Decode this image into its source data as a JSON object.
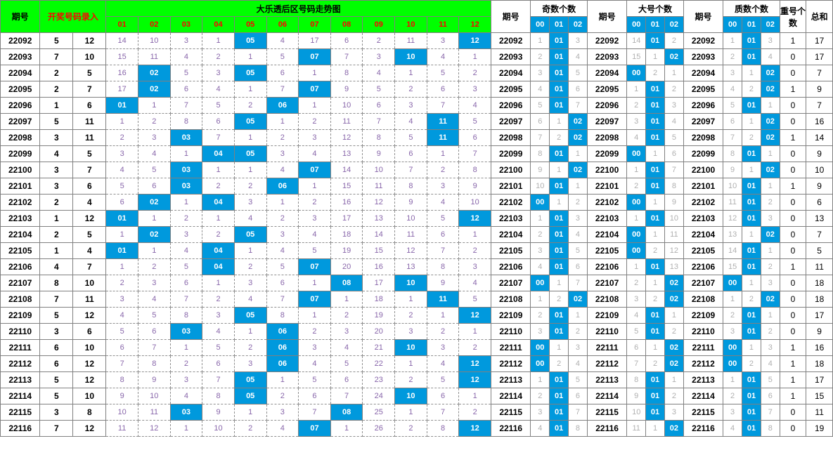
{
  "colors": {
    "header_bg": "#00ff00",
    "highlight_bg": "#0099dd",
    "highlight_fg": "#ffffff",
    "miss_fg": "#8866aa",
    "stat_miss_fg": "#b0b0b0",
    "border": "#808080",
    "dashed_border": "#909090",
    "red": "#ff0000"
  },
  "headers": {
    "period": "期号",
    "draw_entry": "开奖号码录入",
    "trend_title": "大乐透后区号码走势图",
    "trend_cols": [
      "01",
      "02",
      "03",
      "04",
      "05",
      "06",
      "07",
      "08",
      "09",
      "10",
      "11",
      "12"
    ],
    "stat_period": "期号",
    "odd_title": "奇数个数",
    "big_title": "大号个数",
    "prime_title": "质数个数",
    "stat_cols": [
      "00",
      "01",
      "02"
    ],
    "repeat": "重号个数",
    "sum": "总和"
  },
  "rows": [
    {
      "p": "22092",
      "d": [
        5,
        12
      ],
      "trend": [
        14,
        10,
        3,
        1,
        "05",
        4,
        17,
        6,
        2,
        11,
        3,
        "12"
      ],
      "odd": [
        1,
        "01",
        3
      ],
      "big": [
        14,
        "01",
        2
      ],
      "prime": [
        1,
        "01",
        3
      ],
      "rep": 1,
      "sum": 17
    },
    {
      "p": "22093",
      "d": [
        7,
        10
      ],
      "trend": [
        15,
        11,
        4,
        2,
        1,
        5,
        "07",
        7,
        3,
        "10",
        4,
        1
      ],
      "odd": [
        2,
        "01",
        4
      ],
      "big": [
        15,
        1,
        "02"
      ],
      "prime": [
        2,
        "01",
        4
      ],
      "rep": 0,
      "sum": 17
    },
    {
      "p": "22094",
      "d": [
        2,
        5
      ],
      "trend": [
        16,
        "02",
        5,
        3,
        "05",
        6,
        1,
        8,
        4,
        1,
        5,
        2
      ],
      "odd": [
        3,
        "01",
        5
      ],
      "big": [
        "00",
        2,
        1
      ],
      "prime": [
        3,
        1,
        "02"
      ],
      "rep": 0,
      "sum": 7
    },
    {
      "p": "22095",
      "d": [
        2,
        7
      ],
      "trend": [
        17,
        "02",
        6,
        4,
        1,
        7,
        "07",
        9,
        5,
        2,
        6,
        3
      ],
      "odd": [
        4,
        "01",
        6
      ],
      "big": [
        1,
        "01",
        2
      ],
      "prime": [
        4,
        2,
        "02"
      ],
      "rep": 1,
      "sum": 9
    },
    {
      "p": "22096",
      "d": [
        1,
        6
      ],
      "trend": [
        "01",
        1,
        7,
        5,
        2,
        "06",
        1,
        10,
        6,
        3,
        7,
        4
      ],
      "odd": [
        5,
        "01",
        7
      ],
      "big": [
        2,
        "01",
        3
      ],
      "prime": [
        5,
        "01",
        1
      ],
      "rep": 0,
      "sum": 7
    },
    {
      "p": "22097",
      "d": [
        5,
        11
      ],
      "trend": [
        1,
        2,
        8,
        6,
        "05",
        1,
        2,
        11,
        7,
        4,
        "11",
        5
      ],
      "odd": [
        6,
        1,
        "02"
      ],
      "big": [
        3,
        "01",
        4
      ],
      "prime": [
        6,
        1,
        "02"
      ],
      "rep": 0,
      "sum": 16
    },
    {
      "p": "22098",
      "d": [
        3,
        11
      ],
      "trend": [
        2,
        3,
        "03",
        7,
        1,
        2,
        3,
        12,
        8,
        5,
        "11",
        6
      ],
      "odd": [
        7,
        2,
        "02"
      ],
      "big": [
        4,
        "01",
        5
      ],
      "prime": [
        7,
        2,
        "02"
      ],
      "rep": 1,
      "sum": 14
    },
    {
      "p": "22099",
      "d": [
        4,
        5
      ],
      "trend": [
        3,
        4,
        1,
        "04",
        "05",
        3,
        4,
        13,
        9,
        6,
        1,
        7
      ],
      "odd": [
        8,
        "01",
        1
      ],
      "big": [
        "00",
        1,
        6
      ],
      "prime": [
        8,
        "01",
        1
      ],
      "rep": 0,
      "sum": 9
    },
    {
      "p": "22100",
      "d": [
        3,
        7
      ],
      "trend": [
        4,
        5,
        "03",
        1,
        1,
        4,
        "07",
        14,
        10,
        7,
        2,
        8
      ],
      "odd": [
        9,
        1,
        "02"
      ],
      "big": [
        1,
        "01",
        7
      ],
      "prime": [
        9,
        1,
        "02"
      ],
      "rep": 0,
      "sum": 10
    },
    {
      "p": "22101",
      "d": [
        3,
        6
      ],
      "trend": [
        5,
        6,
        "03",
        2,
        2,
        "06",
        1,
        15,
        11,
        8,
        3,
        9
      ],
      "odd": [
        10,
        "01",
        1
      ],
      "big": [
        2,
        "01",
        8
      ],
      "prime": [
        10,
        "01",
        1
      ],
      "rep": 1,
      "sum": 9
    },
    {
      "p": "22102",
      "d": [
        2,
        4
      ],
      "trend": [
        6,
        "02",
        1,
        "04",
        3,
        1,
        2,
        16,
        12,
        9,
        4,
        10
      ],
      "odd": [
        "00",
        1,
        2
      ],
      "big": [
        "00",
        1,
        9
      ],
      "prime": [
        11,
        "01",
        2
      ],
      "rep": 0,
      "sum": 6
    },
    {
      "p": "22103",
      "d": [
        1,
        12
      ],
      "trend": [
        "01",
        1,
        2,
        1,
        4,
        2,
        3,
        17,
        13,
        10,
        5,
        "12"
      ],
      "odd": [
        1,
        "01",
        3
      ],
      "big": [
        1,
        "01",
        10
      ],
      "prime": [
        12,
        "01",
        3
      ],
      "rep": 0,
      "sum": 13
    },
    {
      "p": "22104",
      "d": [
        2,
        5
      ],
      "trend": [
        1,
        "02",
        3,
        2,
        "05",
        3,
        4,
        18,
        14,
        11,
        6,
        1
      ],
      "odd": [
        2,
        "01",
        4
      ],
      "big": [
        "00",
        1,
        11
      ],
      "prime": [
        13,
        1,
        "02"
      ],
      "rep": 0,
      "sum": 7
    },
    {
      "p": "22105",
      "d": [
        1,
        4
      ],
      "trend": [
        "01",
        1,
        4,
        "04",
        1,
        4,
        5,
        19,
        15,
        12,
        7,
        2
      ],
      "odd": [
        3,
        "01",
        5
      ],
      "big": [
        "00",
        2,
        12
      ],
      "prime": [
        14,
        "01",
        1
      ],
      "rep": 0,
      "sum": 5
    },
    {
      "p": "22106",
      "d": [
        4,
        7
      ],
      "trend": [
        1,
        2,
        5,
        "04",
        2,
        5,
        "07",
        20,
        16,
        13,
        8,
        3
      ],
      "odd": [
        4,
        "01",
        6
      ],
      "big": [
        1,
        "01",
        13
      ],
      "prime": [
        15,
        "01",
        2
      ],
      "rep": 1,
      "sum": 11
    },
    {
      "p": "22107",
      "d": [
        8,
        10
      ],
      "trend": [
        2,
        3,
        6,
        1,
        3,
        6,
        1,
        "08",
        17,
        "10",
        9,
        4
      ],
      "odd": [
        "00",
        1,
        7
      ],
      "big": [
        2,
        1,
        "02"
      ],
      "prime": [
        "00",
        1,
        3
      ],
      "rep": 0,
      "sum": 18
    },
    {
      "p": "22108",
      "d": [
        7,
        11
      ],
      "trend": [
        3,
        4,
        7,
        2,
        4,
        7,
        "07",
        1,
        18,
        1,
        "11",
        5
      ],
      "odd": [
        1,
        2,
        "02"
      ],
      "big": [
        3,
        2,
        "02"
      ],
      "prime": [
        1,
        2,
        "02"
      ],
      "rep": 0,
      "sum": 18
    },
    {
      "p": "22109",
      "d": [
        5,
        12
      ],
      "trend": [
        4,
        5,
        8,
        3,
        "05",
        8,
        1,
        2,
        19,
        2,
        1,
        "12"
      ],
      "odd": [
        2,
        "01",
        1
      ],
      "big": [
        4,
        "01",
        1
      ],
      "prime": [
        2,
        "01",
        1
      ],
      "rep": 0,
      "sum": 17
    },
    {
      "p": "22110",
      "d": [
        3,
        6
      ],
      "trend": [
        5,
        6,
        "03",
        4,
        1,
        "06",
        2,
        3,
        20,
        3,
        2,
        1
      ],
      "odd": [
        3,
        "01",
        2
      ],
      "big": [
        5,
        "01",
        2
      ],
      "prime": [
        3,
        "01",
        2
      ],
      "rep": 0,
      "sum": 9
    },
    {
      "p": "22111",
      "d": [
        6,
        10
      ],
      "trend": [
        6,
        7,
        1,
        5,
        2,
        "06",
        3,
        4,
        21,
        "10",
        3,
        2
      ],
      "odd": [
        "00",
        1,
        3
      ],
      "big": [
        6,
        1,
        "02"
      ],
      "prime": [
        "00",
        1,
        3
      ],
      "rep": 1,
      "sum": 16
    },
    {
      "p": "22112",
      "d": [
        6,
        12
      ],
      "trend": [
        7,
        8,
        2,
        6,
        3,
        "06",
        4,
        5,
        22,
        1,
        4,
        "12"
      ],
      "odd": [
        "00",
        2,
        4
      ],
      "big": [
        7,
        2,
        "02"
      ],
      "prime": [
        "00",
        2,
        4
      ],
      "rep": 1,
      "sum": 18
    },
    {
      "p": "22113",
      "d": [
        5,
        12
      ],
      "trend": [
        8,
        9,
        3,
        7,
        "05",
        1,
        5,
        6,
        23,
        2,
        5,
        "12"
      ],
      "odd": [
        1,
        "01",
        5
      ],
      "big": [
        8,
        "01",
        1
      ],
      "prime": [
        1,
        "01",
        5
      ],
      "rep": 1,
      "sum": 17
    },
    {
      "p": "22114",
      "d": [
        5,
        10
      ],
      "trend": [
        9,
        10,
        4,
        8,
        "05",
        2,
        6,
        7,
        24,
        "10",
        6,
        1
      ],
      "odd": [
        2,
        "01",
        6
      ],
      "big": [
        9,
        "01",
        2
      ],
      "prime": [
        2,
        "01",
        6
      ],
      "rep": 1,
      "sum": 15
    },
    {
      "p": "22115",
      "d": [
        3,
        8
      ],
      "trend": [
        10,
        11,
        "03",
        9,
        1,
        3,
        7,
        "08",
        25,
        1,
        7,
        2
      ],
      "odd": [
        3,
        "01",
        7
      ],
      "big": [
        10,
        "01",
        3
      ],
      "prime": [
        3,
        "01",
        7
      ],
      "rep": 0,
      "sum": 11
    },
    {
      "p": "22116",
      "d": [
        7,
        12
      ],
      "trend": [
        11,
        12,
        1,
        10,
        2,
        4,
        "07",
        1,
        26,
        2,
        8,
        "12"
      ],
      "odd": [
        4,
        "01",
        8
      ],
      "big": [
        11,
        1,
        "02"
      ],
      "prime": [
        4,
        "01",
        8
      ],
      "rep": 0,
      "sum": 19
    }
  ]
}
